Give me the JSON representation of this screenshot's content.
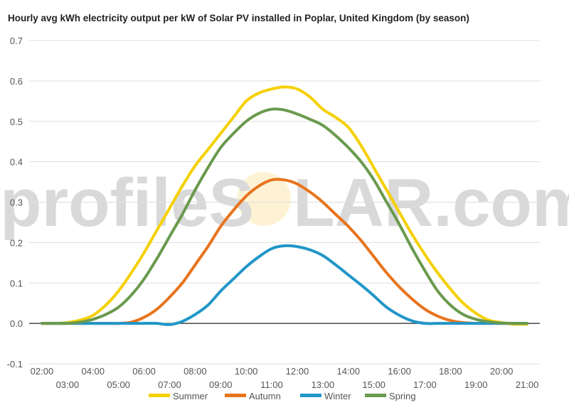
{
  "chart_data": {
    "type": "line",
    "title": "Hourly avg kWh electricity output per kW of Solar PV installed in Poplar, United Kingdom (by season)",
    "watermark": {
      "left": "profileS",
      "right": "LAR.com"
    },
    "ylim": [
      -0.1,
      0.7
    ],
    "yticks": [
      "-0.1",
      "0.0",
      "0.1",
      "0.2",
      "0.3",
      "0.4",
      "0.5",
      "0.6",
      "0.7"
    ],
    "xlim": [
      1.5,
      21.5
    ],
    "xticks_top": [
      "02:00",
      "04:00",
      "06:00",
      "08:00",
      "10:00",
      "12:00",
      "14:00",
      "16:00",
      "18:00",
      "20:00"
    ],
    "xticks_bottom": [
      "03:00",
      "05:00",
      "07:00",
      "09:00",
      "11:00",
      "13:00",
      "15:00",
      "17:00",
      "19:00",
      "21:00"
    ],
    "x": [
      2,
      2.5,
      3,
      3.5,
      4,
      4.5,
      5,
      5.5,
      6,
      6.5,
      7,
      7.5,
      8,
      8.5,
      9,
      9.5,
      10,
      10.5,
      11,
      11.5,
      12,
      12.5,
      13,
      13.5,
      14,
      14.5,
      15,
      15.5,
      16,
      16.5,
      17,
      17.5,
      18,
      18.5,
      19,
      19.5,
      20,
      20.5,
      21
    ],
    "series": [
      {
        "name": "Summer",
        "color": "#f5d000",
        "values": [
          0,
          0,
          0.002,
          0.008,
          0.02,
          0.045,
          0.08,
          0.125,
          0.175,
          0.23,
          0.285,
          0.34,
          0.39,
          0.43,
          0.47,
          0.51,
          0.55,
          0.57,
          0.58,
          0.585,
          0.58,
          0.56,
          0.53,
          0.51,
          0.485,
          0.44,
          0.385,
          0.33,
          0.275,
          0.22,
          0.17,
          0.125,
          0.085,
          0.05,
          0.025,
          0.008,
          0.002,
          -0.002,
          -0.002
        ]
      },
      {
        "name": "Autumn",
        "color": "#e8731c",
        "values": [
          0,
          0,
          0,
          0,
          0,
          0,
          0,
          0.003,
          0.015,
          0.035,
          0.065,
          0.1,
          0.145,
          0.19,
          0.24,
          0.28,
          0.315,
          0.34,
          0.355,
          0.355,
          0.345,
          0.325,
          0.3,
          0.27,
          0.24,
          0.205,
          0.165,
          0.125,
          0.09,
          0.06,
          0.035,
          0.018,
          0.007,
          0.002,
          0,
          0,
          0,
          0,
          0
        ]
      },
      {
        "name": "Winter",
        "color": "#2196c8",
        "values": [
          0,
          0,
          0,
          0,
          0,
          0,
          0,
          0,
          0,
          0,
          -0.003,
          0.005,
          0.022,
          0.045,
          0.08,
          0.11,
          0.14,
          0.165,
          0.185,
          0.192,
          0.19,
          0.182,
          0.168,
          0.145,
          0.12,
          0.095,
          0.068,
          0.04,
          0.02,
          0.006,
          0,
          0,
          0,
          0,
          0,
          0,
          0,
          0,
          0
        ]
      },
      {
        "name": "Spring",
        "color": "#6a9a4e",
        "values": [
          0,
          0,
          0,
          0.003,
          0.01,
          0.022,
          0.04,
          0.07,
          0.11,
          0.16,
          0.215,
          0.27,
          0.33,
          0.385,
          0.435,
          0.47,
          0.5,
          0.52,
          0.53,
          0.528,
          0.518,
          0.505,
          0.49,
          0.465,
          0.435,
          0.4,
          0.355,
          0.3,
          0.245,
          0.185,
          0.13,
          0.08,
          0.045,
          0.022,
          0.01,
          0.004,
          0.001,
          0,
          0
        ]
      }
    ],
    "legend_position": "bottom-center",
    "grid": true
  }
}
